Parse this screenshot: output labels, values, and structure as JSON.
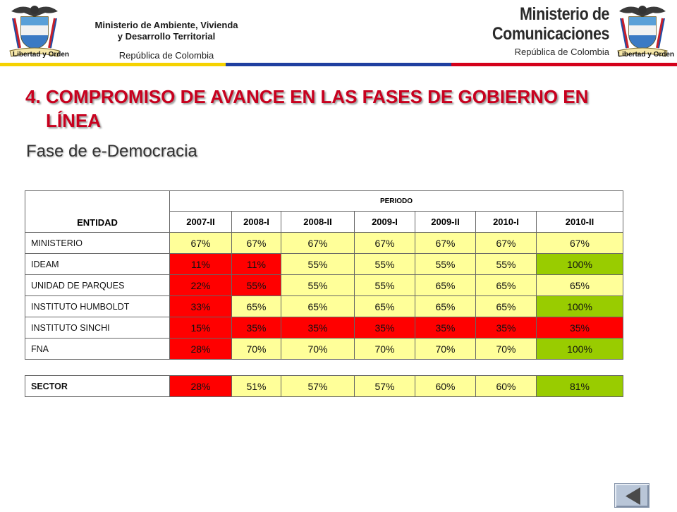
{
  "header": {
    "left_line1": "Ministerio de Ambiente, Vivienda",
    "left_line2": "y Desarrollo Territorial",
    "left_line3": "República de Colombia",
    "right_line1": "Ministerio de",
    "right_line2": "Comunicaciones",
    "right_line3": "República de Colombia",
    "seal_left_caption": "Libertad y Orden",
    "seal_right_caption": "Libertad y Orden"
  },
  "title_line1": "4. COMPROMISO DE AVANCE EN LAS FASES DE GOBIERNO EN",
  "title_line2": "LÍNEA",
  "subtitle": "Fase de e-Democracia",
  "table": {
    "entity_header": "ENTIDAD",
    "period_header": "PERIODO",
    "periods": [
      "2007-II",
      "2008-I",
      "2008-II",
      "2009-I",
      "2009-II",
      "2010-I",
      "2010-II"
    ],
    "rows": [
      {
        "entity": "MINISTERIO",
        "values": [
          "67%",
          "67%",
          "67%",
          "67%",
          "67%",
          "67%",
          "67%"
        ],
        "levels": [
          "y",
          "y",
          "y",
          "y",
          "y",
          "y",
          "y"
        ]
      },
      {
        "entity": "IDEAM",
        "values": [
          "11%",
          "11%",
          "55%",
          "55%",
          "55%",
          "55%",
          "100%"
        ],
        "levels": [
          "r",
          "r",
          "y",
          "y",
          "y",
          "y",
          "g"
        ]
      },
      {
        "entity": "UNIDAD DE PARQUES",
        "values": [
          "22%",
          "55%",
          "55%",
          "55%",
          "65%",
          "65%",
          "65%"
        ],
        "levels": [
          "r",
          "r",
          "y",
          "y",
          "y",
          "y",
          "y"
        ]
      },
      {
        "entity": "INSTITUTO HUMBOLDT",
        "values": [
          "33%",
          "65%",
          "65%",
          "65%",
          "65%",
          "65%",
          "100%"
        ],
        "levels": [
          "r",
          "y",
          "y",
          "y",
          "y",
          "y",
          "g"
        ]
      },
      {
        "entity": "INSTITUTO SINCHI",
        "values": [
          "15%",
          "35%",
          "35%",
          "35%",
          "35%",
          "35%",
          "35%"
        ],
        "levels": [
          "r",
          "r",
          "r",
          "r",
          "r",
          "r",
          "r"
        ]
      },
      {
        "entity": "FNA",
        "values": [
          "28%",
          "70%",
          "70%",
          "70%",
          "70%",
          "70%",
          "100%"
        ],
        "levels": [
          "r",
          "y",
          "y",
          "y",
          "y",
          "y",
          "g"
        ]
      }
    ],
    "sector": {
      "entity": "SECTOR",
      "values": [
        "28%",
        "51%",
        "57%",
        "57%",
        "60%",
        "60%",
        "81%"
      ],
      "levels": [
        "r",
        "y",
        "y",
        "y",
        "y",
        "y",
        "g"
      ]
    }
  },
  "colors": {
    "title": "#c8001e",
    "cell_yellow": "#ffff99",
    "cell_red": "#ff0000",
    "cell_green": "#99cc00",
    "band": [
      "#f5d200",
      "#1f3fa0",
      "#d4001a"
    ]
  },
  "nav": {
    "icon": "previous-slide-triangle-icon"
  }
}
